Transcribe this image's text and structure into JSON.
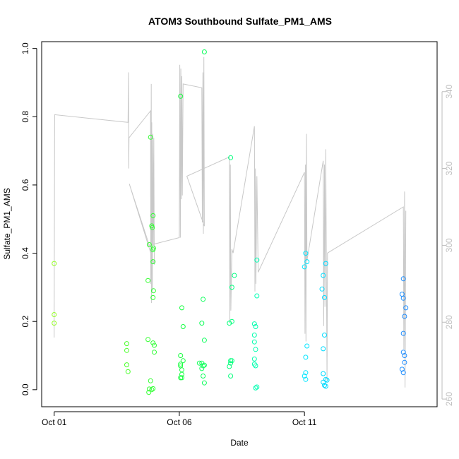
{
  "chart_data": {
    "type": "scatter",
    "title": "ATOM3 Southbound Sulfate_PM1_AMS",
    "xlabel": "Date",
    "ylabel": "Sulfate_PM1_AMS",
    "x_ticks": [
      "Oct 01",
      "Oct 06",
      "Oct 11"
    ],
    "x_tick_values": [
      1,
      6,
      11
    ],
    "xlim": [
      0.5,
      16.3
    ],
    "ylim": [
      -0.05,
      1.02
    ],
    "y_ticks": [
      "0.0",
      "0.2",
      "0.4",
      "0.6",
      "0.8",
      "1.0"
    ],
    "y_tick_values": [
      0,
      0.2,
      0.4,
      0.6,
      0.8,
      1.0
    ],
    "y2_ticks": [
      "260",
      "280",
      "300",
      "320",
      "340"
    ],
    "y2_tick_values": [
      260,
      280,
      300,
      320,
      340
    ],
    "y2lim": [
      258,
      353
    ],
    "grid": false,
    "colors": {
      "line_series": "#c8c8c8",
      "right_axis": "#bdbdbd",
      "axis": "#000000",
      "background": "#ffffff"
    },
    "series": [
      {
        "values": [
          {
            "x": 1.0,
            "y": 0.37
          },
          {
            "x": 1.0,
            "y": 0.22
          },
          {
            "x": 1.0,
            "y": 0.195
          },
          {
            "x": 3.9,
            "y": 0.135
          },
          {
            "x": 3.9,
            "y": 0.115
          },
          {
            "x": 3.9,
            "y": 0.073
          },
          {
            "x": 3.95,
            "y": 0.053
          },
          {
            "x": 4.75,
            "y": 0.32
          },
          {
            "x": 4.8,
            "y": 0.425
          },
          {
            "x": 4.85,
            "y": 0.74
          },
          {
            "x": 4.9,
            "y": 0.48
          },
          {
            "x": 4.92,
            "y": 0.475
          },
          {
            "x": 4.95,
            "y": 0.51
          },
          {
            "x": 4.95,
            "y": 0.41
          },
          {
            "x": 4.97,
            "y": 0.415
          },
          {
            "x": 4.95,
            "y": 0.375
          },
          {
            "x": 4.97,
            "y": 0.29
          },
          {
            "x": 4.95,
            "y": 0.27
          },
          {
            "x": 4.75,
            "y": 0.147
          },
          {
            "x": 4.95,
            "y": 0.137
          },
          {
            "x": 5.0,
            "y": 0.13
          },
          {
            "x": 5.0,
            "y": 0.11
          },
          {
            "x": 4.85,
            "y": 0.026
          },
          {
            "x": 4.8,
            "y": 0.002
          },
          {
            "x": 4.9,
            "y": 0.0
          },
          {
            "x": 4.95,
            "y": 0.003
          },
          {
            "x": 4.78,
            "y": -0.008
          },
          {
            "x": 6.05,
            "y": 0.86
          },
          {
            "x": 6.1,
            "y": 0.24
          },
          {
            "x": 6.15,
            "y": 0.185
          },
          {
            "x": 6.05,
            "y": 0.1
          },
          {
            "x": 6.15,
            "y": 0.085
          },
          {
            "x": 6.05,
            "y": 0.075
          },
          {
            "x": 6.05,
            "y": 0.07
          },
          {
            "x": 6.1,
            "y": 0.058
          },
          {
            "x": 6.1,
            "y": 0.045
          },
          {
            "x": 6.05,
            "y": 0.035
          },
          {
            "x": 6.1,
            "y": 0.035
          },
          {
            "x": 7.0,
            "y": 0.99
          },
          {
            "x": 6.95,
            "y": 0.265
          },
          {
            "x": 6.9,
            "y": 0.195
          },
          {
            "x": 7.0,
            "y": 0.145
          },
          {
            "x": 6.8,
            "y": 0.078
          },
          {
            "x": 6.9,
            "y": 0.078
          },
          {
            "x": 6.95,
            "y": 0.07
          },
          {
            "x": 7.0,
            "y": 0.072
          },
          {
            "x": 6.9,
            "y": 0.062
          },
          {
            "x": 6.95,
            "y": 0.04
          },
          {
            "x": 7.0,
            "y": 0.02
          },
          {
            "x": 8.05,
            "y": 0.68
          },
          {
            "x": 8.2,
            "y": 0.335
          },
          {
            "x": 8.1,
            "y": 0.3
          },
          {
            "x": 8.1,
            "y": 0.2
          },
          {
            "x": 8.0,
            "y": 0.195
          },
          {
            "x": 8.05,
            "y": 0.085
          },
          {
            "x": 8.1,
            "y": 0.085
          },
          {
            "x": 8.05,
            "y": 0.078
          },
          {
            "x": 8.0,
            "y": 0.068
          },
          {
            "x": 8.05,
            "y": 0.04
          },
          {
            "x": 9.1,
            "y": 0.38
          },
          {
            "x": 9.1,
            "y": 0.275
          },
          {
            "x": 9.0,
            "y": 0.193
          },
          {
            "x": 9.05,
            "y": 0.185
          },
          {
            "x": 9.0,
            "y": 0.16
          },
          {
            "x": 9.0,
            "y": 0.14
          },
          {
            "x": 9.05,
            "y": 0.118
          },
          {
            "x": 9.0,
            "y": 0.09
          },
          {
            "x": 9.0,
            "y": 0.075
          },
          {
            "x": 9.05,
            "y": 0.07
          },
          {
            "x": 9.1,
            "y": 0.008
          },
          {
            "x": 9.05,
            "y": 0.005
          },
          {
            "x": 11.05,
            "y": 0.4
          },
          {
            "x": 11.1,
            "y": 0.375
          },
          {
            "x": 11.0,
            "y": 0.36
          },
          {
            "x": 11.1,
            "y": 0.128
          },
          {
            "x": 11.05,
            "y": 0.095
          },
          {
            "x": 11.05,
            "y": 0.05
          },
          {
            "x": 11.0,
            "y": 0.04
          },
          {
            "x": 11.05,
            "y": 0.03
          },
          {
            "x": 11.85,
            "y": 0.37
          },
          {
            "x": 11.75,
            "y": 0.335
          },
          {
            "x": 11.7,
            "y": 0.295
          },
          {
            "x": 11.8,
            "y": 0.27
          },
          {
            "x": 11.8,
            "y": 0.16
          },
          {
            "x": 11.75,
            "y": 0.12
          },
          {
            "x": 11.75,
            "y": 0.047
          },
          {
            "x": 11.85,
            "y": 0.03
          },
          {
            "x": 11.9,
            "y": 0.028
          },
          {
            "x": 11.75,
            "y": 0.022
          },
          {
            "x": 11.8,
            "y": 0.013
          },
          {
            "x": 11.85,
            "y": 0.01
          },
          {
            "x": 14.95,
            "y": 0.325
          },
          {
            "x": 14.9,
            "y": 0.28
          },
          {
            "x": 14.95,
            "y": 0.268
          },
          {
            "x": 15.05,
            "y": 0.24
          },
          {
            "x": 15.0,
            "y": 0.215
          },
          {
            "x": 14.95,
            "y": 0.165
          },
          {
            "x": 14.95,
            "y": 0.11
          },
          {
            "x": 15.0,
            "y": 0.1
          },
          {
            "x": 15.0,
            "y": 0.08
          },
          {
            "x": 14.9,
            "y": 0.06
          },
          {
            "x": 14.95,
            "y": 0.05
          }
        ]
      },
      {
        "type": "line",
        "axis": "right",
        "values": [
          {
            "x": 1.0,
            "y": 276
          },
          {
            "x": 1.0,
            "y": 283
          },
          {
            "x": 1.0,
            "y": 279
          },
          {
            "x": 1.02,
            "y": 334
          },
          {
            "x": 3.95,
            "y": 332
          },
          {
            "x": 3.97,
            "y": 345
          },
          {
            "x": 3.98,
            "y": 320
          },
          {
            "x": 3.99,
            "y": 328
          },
          {
            "x": 4.85,
            "y": 335
          },
          {
            "x": 4.86,
            "y": 290
          },
          {
            "x": 4.88,
            "y": 342
          },
          {
            "x": 4.89,
            "y": 285
          },
          {
            "x": 4.9,
            "y": 332
          },
          {
            "x": 4.92,
            "y": 288
          },
          {
            "x": 4.94,
            "y": 329
          },
          {
            "x": 4.96,
            "y": 300
          },
          {
            "x": 4.98,
            "y": 328
          },
          {
            "x": 5.0,
            "y": 295
          },
          {
            "x": 4.0,
            "y": 316
          },
          {
            "x": 4.8,
            "y": 300
          },
          {
            "x": 6.0,
            "y": 302
          },
          {
            "x": 6.02,
            "y": 347
          },
          {
            "x": 6.04,
            "y": 302
          },
          {
            "x": 6.06,
            "y": 346
          },
          {
            "x": 6.08,
            "y": 312
          },
          {
            "x": 6.1,
            "y": 344
          },
          {
            "x": 6.12,
            "y": 313
          },
          {
            "x": 6.15,
            "y": 342
          },
          {
            "x": 6.9,
            "y": 341
          },
          {
            "x": 6.92,
            "y": 306
          },
          {
            "x": 6.94,
            "y": 345
          },
          {
            "x": 6.96,
            "y": 303
          },
          {
            "x": 6.98,
            "y": 349
          },
          {
            "x": 7.0,
            "y": 305
          },
          {
            "x": 6.3,
            "y": 318
          },
          {
            "x": 8.0,
            "y": 323
          },
          {
            "x": 8.02,
            "y": 280
          },
          {
            "x": 8.04,
            "y": 321
          },
          {
            "x": 8.06,
            "y": 283
          },
          {
            "x": 8.1,
            "y": 299
          },
          {
            "x": 8.15,
            "y": 298
          },
          {
            "x": 9.0,
            "y": 331
          },
          {
            "x": 9.02,
            "y": 288
          },
          {
            "x": 9.04,
            "y": 320
          },
          {
            "x": 9.06,
            "y": 290
          },
          {
            "x": 9.1,
            "y": 318
          },
          {
            "x": 9.15,
            "y": 293
          },
          {
            "x": 11.0,
            "y": 319
          },
          {
            "x": 11.02,
            "y": 277
          },
          {
            "x": 11.04,
            "y": 321
          },
          {
            "x": 11.06,
            "y": 275
          },
          {
            "x": 11.08,
            "y": 329
          },
          {
            "x": 11.1,
            "y": 296
          },
          {
            "x": 11.75,
            "y": 322
          },
          {
            "x": 11.77,
            "y": 279
          },
          {
            "x": 11.8,
            "y": 321
          },
          {
            "x": 11.82,
            "y": 284
          },
          {
            "x": 11.85,
            "y": 325
          },
          {
            "x": 11.9,
            "y": 265
          },
          {
            "x": 11.92,
            "y": 298
          },
          {
            "x": 14.95,
            "y": 310
          },
          {
            "x": 14.97,
            "y": 273
          },
          {
            "x": 15.0,
            "y": 314
          },
          {
            "x": 15.02,
            "y": 263
          },
          {
            "x": 15.05,
            "y": 309
          }
        ]
      }
    ]
  }
}
